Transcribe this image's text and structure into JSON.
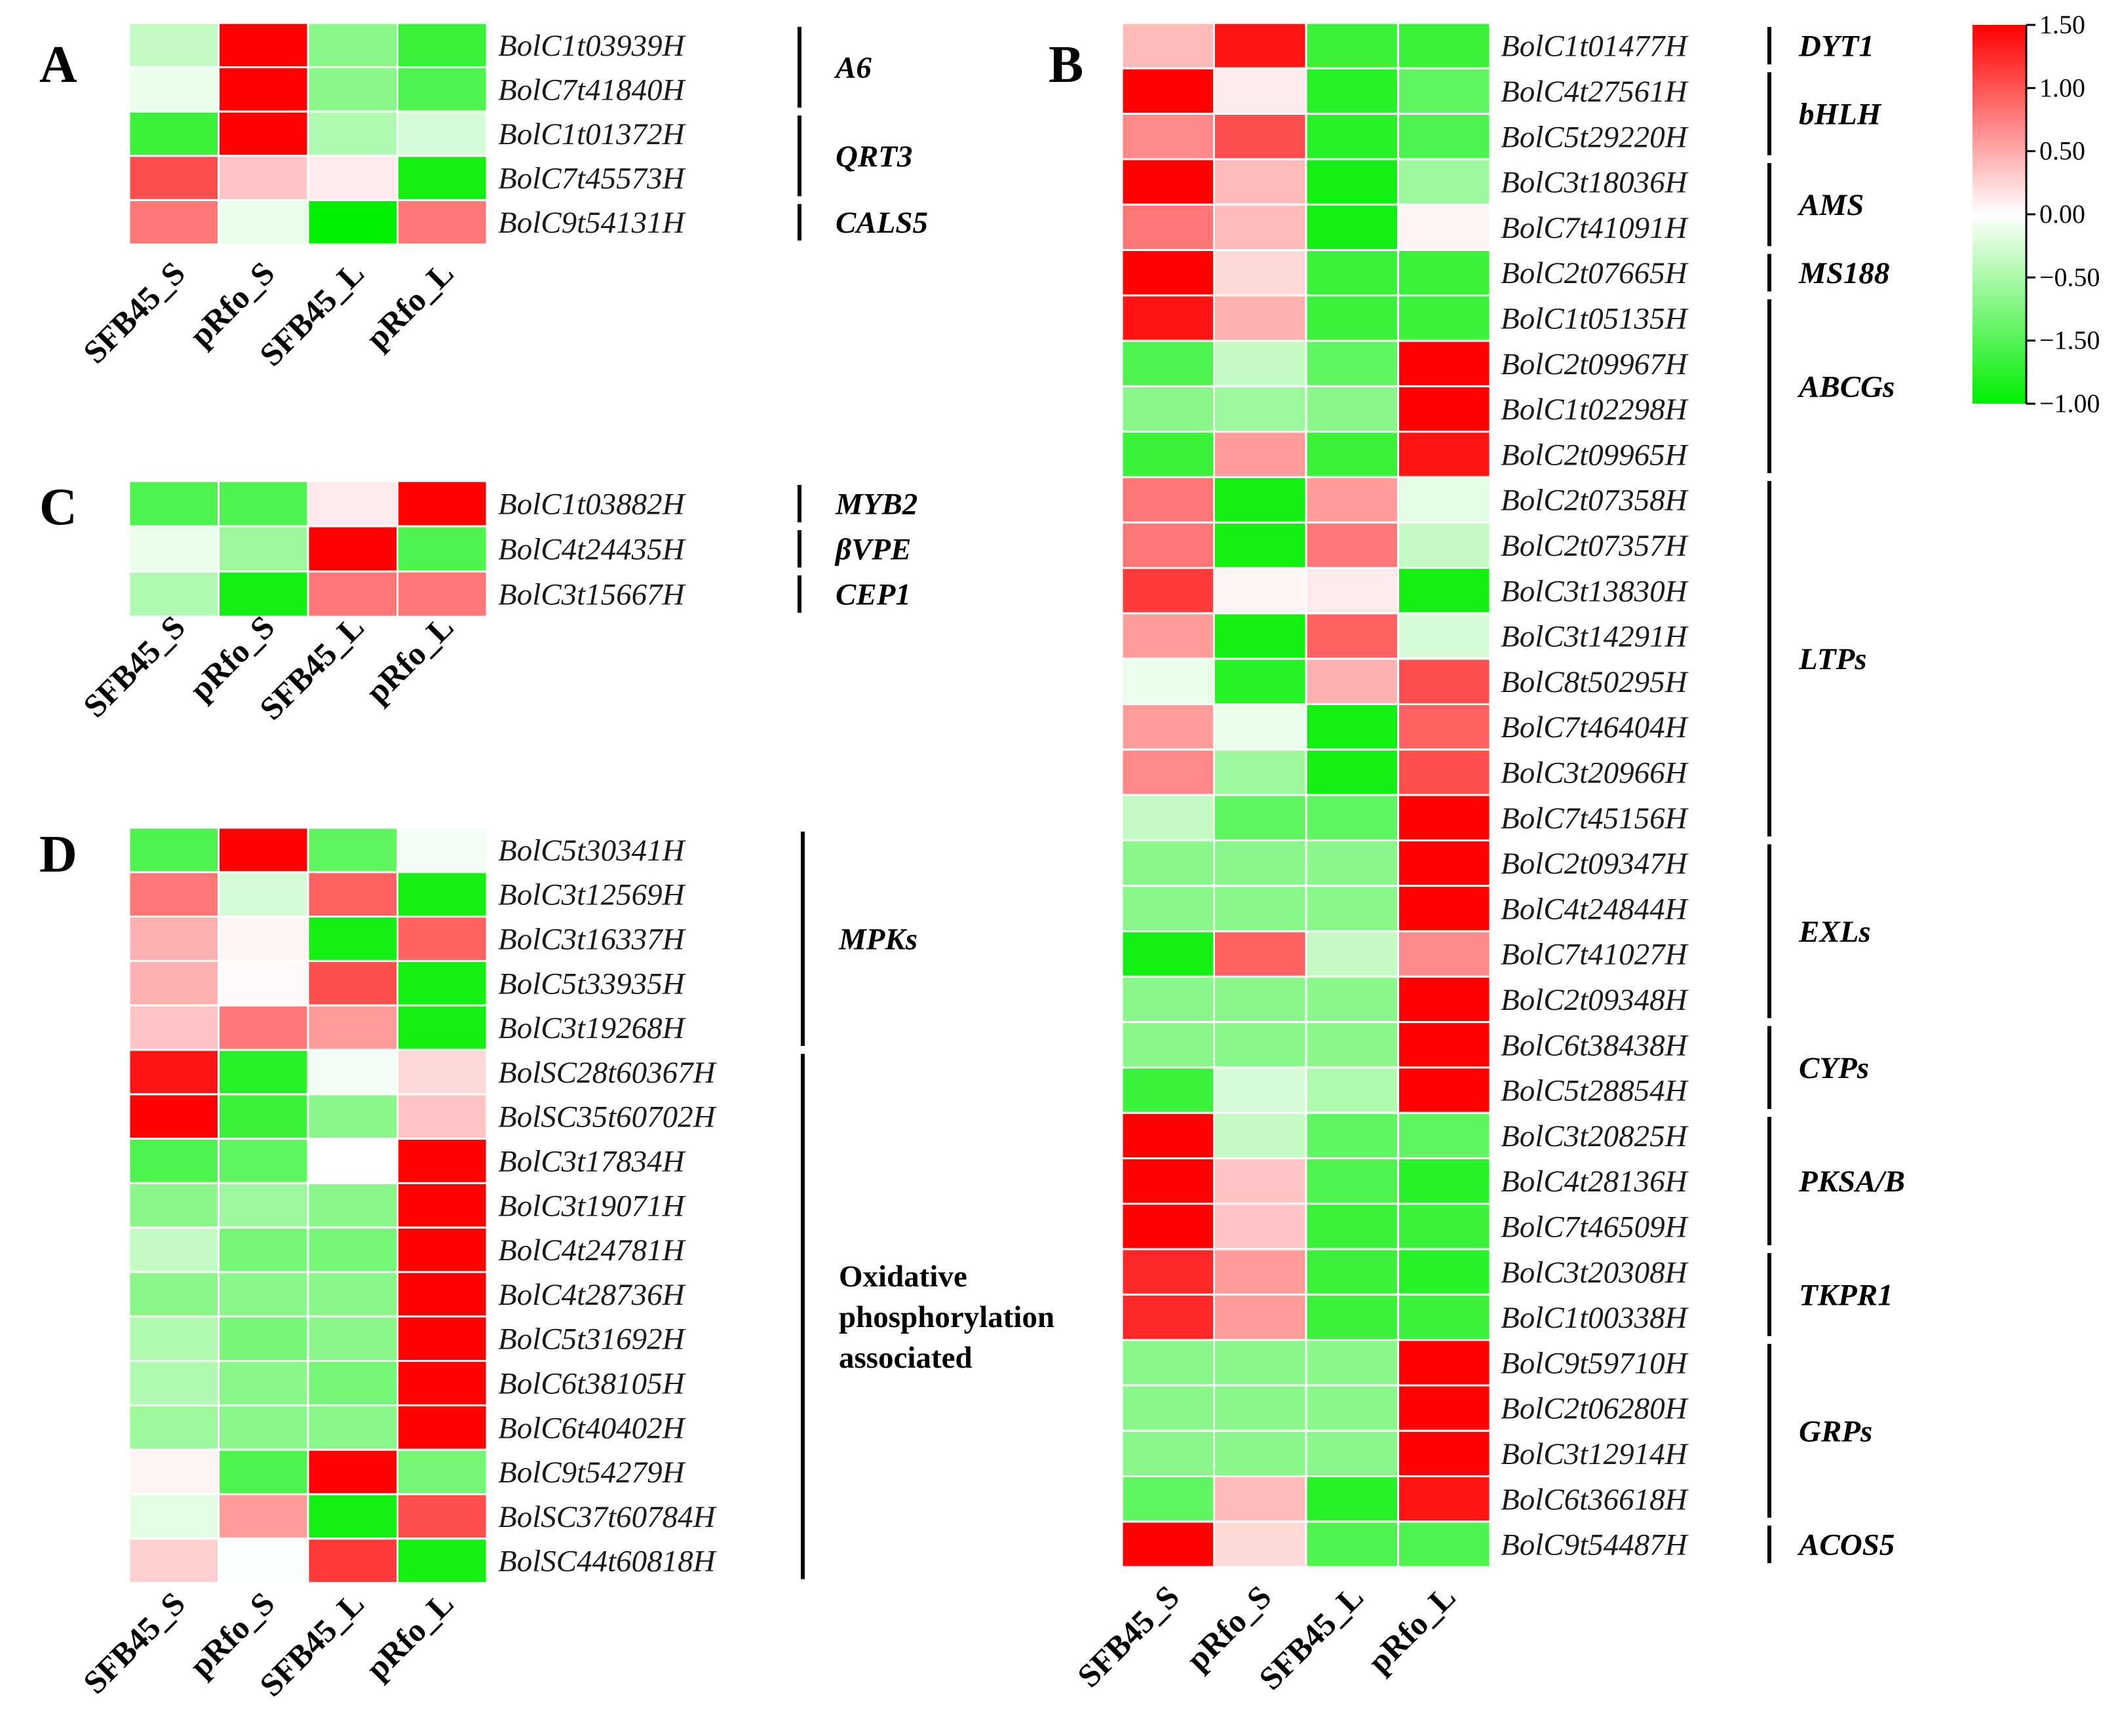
{
  "chart_data": {
    "type": "heatmap",
    "color_scale": {
      "tick_labels": [
        "1.50",
        "1.00",
        "0.50",
        "0.00",
        "−0.50",
        "−1.50",
        "−1.00"
      ],
      "colors": {
        "low": "#00ee00",
        "mid": "#ffffff",
        "high": "#ff0000"
      }
    },
    "columns": [
      "SFB45_S",
      "pRfo_S",
      "SFB45_L",
      "pRfo_L"
    ],
    "panels": [
      {
        "label": "A",
        "genes": [
          "BolC1t03939H",
          "BolC7t41840H",
          "BolC1t01372H",
          "BolC7t45573H",
          "BolC9t54131H"
        ],
        "values": [
          [
            -0.3,
            1.5,
            -0.6,
            -1.0
          ],
          [
            -0.1,
            1.5,
            -0.6,
            -0.9
          ],
          [
            -1.0,
            1.5,
            -0.4,
            -0.2
          ],
          [
            0.9,
            0.3,
            0.1,
            -1.2
          ],
          [
            0.7,
            -0.1,
            -1.3,
            0.7
          ]
        ],
        "groups": [
          {
            "name": "A6",
            "rows": [
              0,
              1
            ],
            "italic": true
          },
          {
            "name": "QRT3",
            "rows": [
              2,
              3
            ],
            "italic": true
          },
          {
            "name": "CALS5",
            "rows": [
              4,
              4
            ],
            "italic": true
          }
        ]
      },
      {
        "label": "C",
        "genes": [
          "BolC1t03882H",
          "BolC4t24435H",
          "BolC3t15667H"
        ],
        "values": [
          [
            -0.9,
            -0.9,
            0.1,
            1.5
          ],
          [
            -0.1,
            -0.5,
            1.5,
            -0.9
          ],
          [
            -0.4,
            -1.2,
            0.7,
            0.7
          ]
        ],
        "groups": [
          {
            "name": "MYB2",
            "rows": [
              0,
              0
            ],
            "italic": true
          },
          {
            "name": "βVPE",
            "rows": [
              1,
              1
            ],
            "italic": true
          },
          {
            "name": "CEP1",
            "rows": [
              2,
              2
            ],
            "italic": true
          }
        ]
      },
      {
        "label": "D",
        "genes": [
          "BolC5t30341H",
          "BolC3t12569H",
          "BolC3t16337H",
          "BolC5t33935H",
          "BolC3t19268H",
          "BolSC28t60367H",
          "BolSC35t60702H",
          "BolC3t17834H",
          "BolC3t19071H",
          "BolC4t24781H",
          "BolC4t28736H",
          "BolC5t31692H",
          "BolC6t38105H",
          "BolC6t40402H",
          "BolC9t54279H",
          "BolSC37t60784H",
          "BolSC44t60818H"
        ],
        "values": [
          [
            -0.9,
            1.5,
            -0.8,
            -0.05
          ],
          [
            0.7,
            -0.2,
            0.8,
            -1.2
          ],
          [
            0.4,
            0.05,
            -1.2,
            0.8
          ],
          [
            0.4,
            0.02,
            0.9,
            -1.2
          ],
          [
            0.3,
            0.7,
            0.5,
            -1.2
          ],
          [
            1.2,
            -1.1,
            -0.05,
            0.2
          ],
          [
            1.3,
            -1.0,
            -0.6,
            0.3
          ],
          [
            -0.9,
            -0.8,
            0.0,
            1.5
          ],
          [
            -0.6,
            -0.5,
            -0.6,
            1.5
          ],
          [
            -0.3,
            -0.7,
            -0.7,
            1.5
          ],
          [
            -0.6,
            -0.6,
            -0.6,
            1.5
          ],
          [
            -0.4,
            -0.7,
            -0.6,
            1.5
          ],
          [
            -0.4,
            -0.6,
            -0.7,
            1.5
          ],
          [
            -0.5,
            -0.6,
            -0.6,
            1.5
          ],
          [
            0.05,
            -0.9,
            1.5,
            -0.7
          ],
          [
            -0.15,
            0.5,
            -1.2,
            0.9
          ],
          [
            0.25,
            -0.02,
            1.0,
            -1.2
          ]
        ],
        "groups": [
          {
            "name": "MPKs",
            "rows": [
              0,
              4
            ],
            "italic": true
          },
          {
            "name": "Oxidative phosphorylation associated",
            "lines": [
              "Oxidative",
              "phosphorylation",
              "associated"
            ],
            "rows": [
              5,
              16
            ],
            "italic": false
          }
        ]
      },
      {
        "label": "B",
        "genes": [
          "BolC1t01477H",
          "BolC4t27561H",
          "BolC5t29220H",
          "BolC3t18036H",
          "BolC7t41091H",
          "BolC2t07665H",
          "BolC1t05135H",
          "BolC2t09967H",
          "BolC1t02298H",
          "BolC2t09965H",
          "BolC2t07358H",
          "BolC2t07357H",
          "BolC3t13830H",
          "BolC3t14291H",
          "BolC8t50295H",
          "BolC7t46404H",
          "BolC3t20966H",
          "BolC7t45156H",
          "BolC2t09347H",
          "BolC4t24844H",
          "BolC7t41027H",
          "BolC2t09348H",
          "BolC6t38438H",
          "BolC5t28854H",
          "BolC3t20825H",
          "BolC4t28136H",
          "BolC7t46509H",
          "BolC3t20308H",
          "BolC1t00338H",
          "BolC9t59710H",
          "BolC2t06280H",
          "BolC3t12914H",
          "BolC6t36618H",
          "BolC9t54487H"
        ],
        "values": [
          [
            0.35,
            1.2,
            -1.0,
            -1.0
          ],
          [
            1.4,
            0.1,
            -1.1,
            -0.8
          ],
          [
            0.6,
            0.9,
            -1.1,
            -0.9
          ],
          [
            1.3,
            0.35,
            -1.2,
            -0.5
          ],
          [
            0.7,
            0.35,
            -1.2,
            0.05
          ],
          [
            1.4,
            0.2,
            -1.0,
            -1.0
          ],
          [
            1.2,
            0.4,
            -1.0,
            -1.0
          ],
          [
            -0.9,
            -0.3,
            -0.8,
            1.5
          ],
          [
            -0.6,
            -0.5,
            -0.6,
            1.5
          ],
          [
            -1.0,
            0.5,
            -1.0,
            1.2
          ],
          [
            0.7,
            -1.2,
            0.5,
            -0.15
          ],
          [
            0.7,
            -1.2,
            0.7,
            -0.3
          ],
          [
            1.0,
            0.05,
            0.1,
            -1.2
          ],
          [
            0.5,
            -1.2,
            0.8,
            -0.2
          ],
          [
            -0.1,
            -1.1,
            0.4,
            0.9
          ],
          [
            0.5,
            -0.1,
            -1.2,
            0.8
          ],
          [
            0.6,
            -0.5,
            -1.2,
            0.9
          ],
          [
            -0.3,
            -0.8,
            -0.8,
            1.5
          ],
          [
            -0.6,
            -0.6,
            -0.6,
            1.5
          ],
          [
            -0.6,
            -0.6,
            -0.6,
            1.5
          ],
          [
            -1.2,
            0.8,
            -0.3,
            0.6
          ],
          [
            -0.6,
            -0.6,
            -0.6,
            1.5
          ],
          [
            -0.6,
            -0.6,
            -0.6,
            1.5
          ],
          [
            -1.0,
            -0.2,
            -0.4,
            1.5
          ],
          [
            1.5,
            -0.3,
            -0.8,
            -0.8
          ],
          [
            1.3,
            0.3,
            -0.9,
            -1.1
          ],
          [
            1.3,
            0.3,
            -1.0,
            -1.0
          ],
          [
            1.1,
            0.5,
            -1.0,
            -1.1
          ],
          [
            1.1,
            0.5,
            -1.0,
            -1.0
          ],
          [
            -0.6,
            -0.6,
            -0.6,
            1.5
          ],
          [
            -0.6,
            -0.6,
            -0.6,
            1.5
          ],
          [
            -0.6,
            -0.6,
            -0.6,
            1.5
          ],
          [
            -0.8,
            0.35,
            -1.1,
            1.2
          ],
          [
            1.4,
            0.2,
            -0.9,
            -0.9
          ]
        ],
        "groups": [
          {
            "name": "DYT1",
            "rows": [
              0,
              0
            ],
            "italic": true
          },
          {
            "name": "bHLH",
            "rows": [
              1,
              2
            ],
            "italic": true
          },
          {
            "name": "AMS",
            "rows": [
              3,
              4
            ],
            "italic": true
          },
          {
            "name": "MS188",
            "rows": [
              5,
              5
            ],
            "italic": true
          },
          {
            "name": "ABCGs",
            "rows": [
              6,
              9
            ],
            "italic": true
          },
          {
            "name": "LTPs",
            "rows": [
              10,
              17
            ],
            "italic": true
          },
          {
            "name": "EXLs",
            "rows": [
              18,
              21
            ],
            "italic": true
          },
          {
            "name": "CYPs",
            "rows": [
              22,
              23
            ],
            "italic": true
          },
          {
            "name": "PKSA/B",
            "rows": [
              24,
              26
            ],
            "italic": true
          },
          {
            "name": "TKPR1",
            "rows": [
              27,
              28
            ],
            "italic": true
          },
          {
            "name": "GRPs",
            "rows": [
              29,
              32
            ],
            "italic": true
          },
          {
            "name": "ACOS5",
            "rows": [
              33,
              33
            ],
            "italic": true
          }
        ]
      }
    ]
  }
}
